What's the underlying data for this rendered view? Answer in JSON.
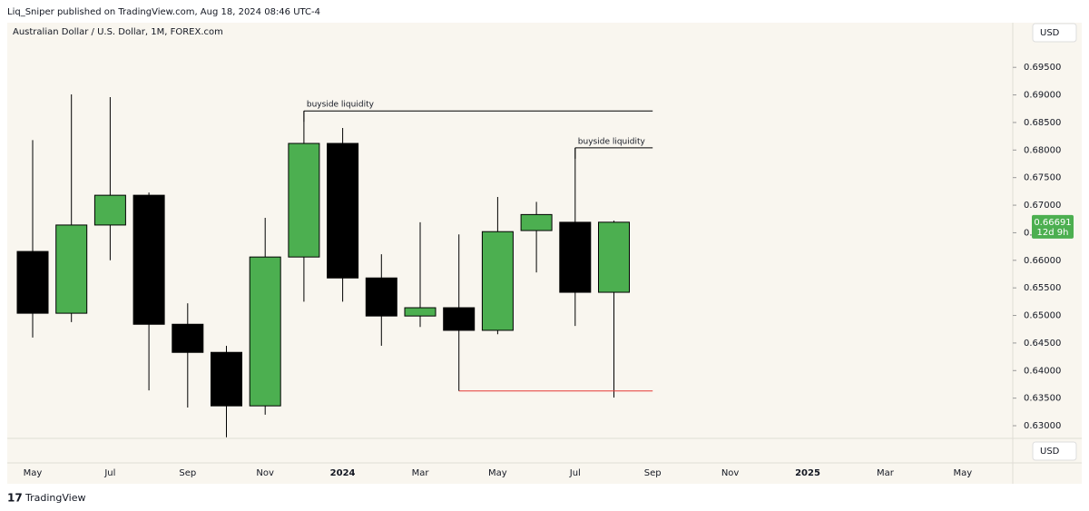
{
  "header": {
    "publisher": "Liq_Sniper published on TradingView.com, Aug 18, 2024 08:46 UTC-4",
    "brand": "TradingView"
  },
  "chart_data": {
    "type": "candlestick",
    "title": "Australian Dollar / U.S. Dollar, 1M, FOREX.com",
    "currency": "USD",
    "up_color": "#4caf50",
    "down_color": "#000000",
    "categories": [
      "May",
      null,
      "Jul",
      null,
      "Sep",
      null,
      "Nov",
      null,
      "2024",
      null,
      "Mar",
      null,
      "May",
      null,
      "Jul",
      null,
      "Sep",
      null,
      "Nov",
      null,
      "2025",
      null,
      "Mar",
      null,
      "May"
    ],
    "open": [
      0.6616,
      0.6504,
      0.6664,
      0.6718,
      0.6484,
      0.6433,
      0.6336,
      0.6606,
      0.6812,
      0.6568,
      0.6499,
      0.6514,
      0.6473,
      0.6654,
      0.6669,
      0.6542,
      null,
      null,
      null,
      null,
      null,
      null,
      null,
      null,
      null
    ],
    "high": [
      0.6818,
      0.6901,
      0.6896,
      0.6723,
      0.6522,
      0.6445,
      0.6677,
      0.6871,
      0.684,
      0.6611,
      0.6669,
      0.6647,
      0.6715,
      0.6706,
      0.6804,
      0.6672,
      null,
      null,
      null,
      null,
      null,
      null,
      null,
      null,
      null
    ],
    "low": [
      0.646,
      0.6488,
      0.66,
      0.6364,
      0.6333,
      0.6279,
      0.632,
      0.6525,
      0.6525,
      0.6445,
      0.6479,
      0.6363,
      0.6466,
      0.6578,
      0.6481,
      0.6351,
      null,
      null,
      null,
      null,
      null,
      null,
      null,
      null,
      null
    ],
    "close": [
      0.6504,
      0.6664,
      0.6718,
      0.6484,
      0.6433,
      0.6336,
      0.6606,
      0.6812,
      0.6568,
      0.6499,
      0.6514,
      0.6473,
      0.6652,
      0.6683,
      0.6542,
      0.66691,
      null,
      null,
      null,
      null,
      null,
      null,
      null,
      null,
      null
    ],
    "ylim": [
      0.6277,
      0.7031
    ],
    "yticks": [
      {
        "value": 0.63,
        "label": "0.63000"
      },
      {
        "value": 0.635,
        "label": "0.63500"
      },
      {
        "value": 0.64,
        "label": "0.64000"
      },
      {
        "value": 0.645,
        "label": "0.64500"
      },
      {
        "value": 0.65,
        "label": "0.65000"
      },
      {
        "value": 0.655,
        "label": "0.65500"
      },
      {
        "value": 0.66,
        "label": "0.66000"
      },
      {
        "value": 0.665,
        "label": "0.66500"
      },
      {
        "value": 0.67,
        "label": "0.67000"
      },
      {
        "value": 0.675,
        "label": "0.67500"
      },
      {
        "value": 0.68,
        "label": "0.68000"
      },
      {
        "value": 0.685,
        "label": "0.68500"
      },
      {
        "value": 0.69,
        "label": "0.69000"
      },
      {
        "value": 0.695,
        "label": "0.69500"
      }
    ],
    "last_price": {
      "value": 0.66691,
      "label": "0.66691"
    },
    "countdown": "12d 9h",
    "annotations": [
      {
        "text": "buyside liquidity",
        "level": 0.6871,
        "kind": "high"
      },
      {
        "text": "buyside liquidity",
        "level": 0.6804,
        "kind": "high"
      },
      {
        "level": 0.6363,
        "kind": "low",
        "color": "#e53935"
      }
    ]
  }
}
